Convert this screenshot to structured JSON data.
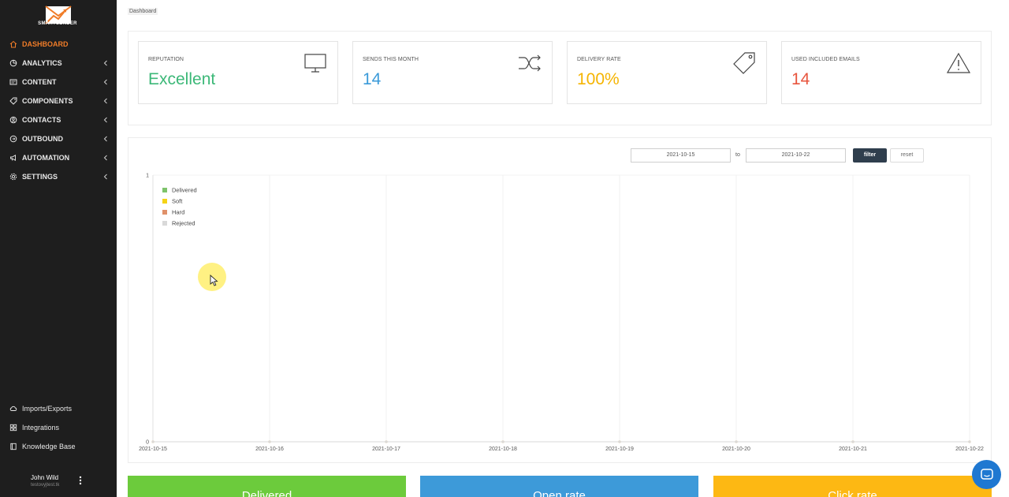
{
  "brand": {
    "name": "SMARTSENDER",
    "logo_icon": "envelope-chart-logo"
  },
  "sidebar": {
    "items": [
      {
        "label": "DASHBOARD",
        "icon": "home-icon",
        "active": true,
        "has_children": false
      },
      {
        "label": "ANALYTICS",
        "icon": "analytics-icon",
        "active": false,
        "has_children": true
      },
      {
        "label": "CONTENT",
        "icon": "content-icon",
        "active": false,
        "has_children": true
      },
      {
        "label": "COMPONENTS",
        "icon": "tag-icon",
        "active": false,
        "has_children": true
      },
      {
        "label": "CONTACTS",
        "icon": "contacts-icon",
        "active": false,
        "has_children": true
      },
      {
        "label": "OUTBOUND",
        "icon": "outbound-icon",
        "active": false,
        "has_children": true
      },
      {
        "label": "AUTOMATION",
        "icon": "megaphone-icon",
        "active": false,
        "has_children": true
      },
      {
        "label": "SETTINGS",
        "icon": "gear-icon",
        "active": false,
        "has_children": true
      }
    ],
    "bottom_items": [
      {
        "label": "Imports/Exports",
        "icon": "cloud-icon"
      },
      {
        "label": "Integrations",
        "icon": "grid-icon"
      },
      {
        "label": "Knowledge Base",
        "icon": "book-icon"
      }
    ],
    "user": {
      "name": "John Wild",
      "subtitle": "testovyjtest.tk"
    }
  },
  "breadcrumb": "Dashboard",
  "stats": [
    {
      "label": "REPUTATION",
      "value": "Excellent",
      "color": "#3cb878",
      "icon": "monitor-icon"
    },
    {
      "label": "SENDS THIS MONTH",
      "value": "14",
      "color": "#3a9ad9",
      "icon": "shuffle-icon"
    },
    {
      "label": "DELIVERY RATE",
      "value": "100%",
      "color": "#f5b400",
      "icon": "price-tag-icon"
    },
    {
      "label": "USED INCLUDED EMAILS",
      "value": "14",
      "color": "#e8553e",
      "icon": "warning-icon"
    }
  ],
  "filter": {
    "from": "2021-10-15",
    "to_label": "to",
    "to": "2021-10-22",
    "filter_label": "filter",
    "reset_label": "reset"
  },
  "chart_data": {
    "type": "line",
    "x": [
      "2021-10-15",
      "2021-10-16",
      "2021-10-17",
      "2021-10-18",
      "2021-10-19",
      "2021-10-20",
      "2021-10-21",
      "2021-10-22"
    ],
    "series": [
      {
        "name": "Delivered",
        "color": "#7dc36b",
        "values": [
          0,
          0,
          0,
          0,
          0,
          0,
          0,
          0
        ]
      },
      {
        "name": "Soft",
        "color": "#f5d315",
        "values": [
          0,
          0,
          0,
          0,
          0,
          0,
          0,
          0
        ]
      },
      {
        "name": "Hard",
        "color": "#e0916a",
        "values": [
          0,
          0,
          0,
          0,
          0,
          0,
          0,
          0
        ]
      },
      {
        "name": "Rejected",
        "color": "#d9d9d9",
        "values": [
          0,
          0,
          0,
          0,
          0,
          0,
          0,
          0
        ]
      }
    ],
    "yticks": [
      "1",
      "0"
    ],
    "ylim": [
      0,
      1
    ],
    "grid": true,
    "legend": "top-left"
  },
  "bottom_cards": [
    {
      "label": "Delivered",
      "color": "#6ccb3c"
    },
    {
      "label": "Open rate",
      "color": "#3d9ad9"
    },
    {
      "label": "Click rate",
      "color": "#fdb813"
    }
  ]
}
